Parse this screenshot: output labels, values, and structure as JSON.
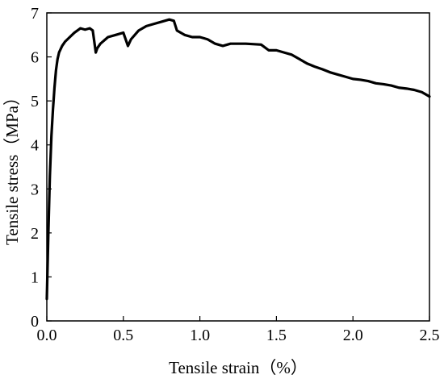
{
  "chart_data": {
    "type": "line",
    "xlabel": "Tensile strain（%）",
    "ylabel": "Tensile stress（MPa）",
    "xlim": [
      0,
      2.5
    ],
    "ylim": [
      0,
      7
    ],
    "xticks": [
      "0.0",
      "0.5",
      "1.0",
      "1.5",
      "2.0",
      "2.5"
    ],
    "yticks": [
      "0",
      "1",
      "2",
      "3",
      "4",
      "5",
      "6",
      "7"
    ],
    "grid": false,
    "legend": "none",
    "line_color": "#000000",
    "series": [
      {
        "x": [
          0.0,
          0.01,
          0.02,
          0.03,
          0.04,
          0.05,
          0.06,
          0.07,
          0.08,
          0.1,
          0.12,
          0.15,
          0.18,
          0.2,
          0.22,
          0.25,
          0.28,
          0.3,
          0.31,
          0.32,
          0.33,
          0.35,
          0.4,
          0.45,
          0.5,
          0.53,
          0.55,
          0.6,
          0.65,
          0.7,
          0.75,
          0.8,
          0.83,
          0.85,
          0.9,
          0.95,
          1.0,
          1.05,
          1.1,
          1.15,
          1.2,
          1.3,
          1.4,
          1.45,
          1.5,
          1.55,
          1.6,
          1.65,
          1.7,
          1.75,
          1.8,
          1.85,
          1.9,
          1.95,
          2.0,
          2.05,
          2.1,
          2.15,
          2.2,
          2.25,
          2.3,
          2.35,
          2.4,
          2.45,
          2.5
        ],
        "y": [
          0.5,
          2.0,
          3.3,
          4.2,
          4.8,
          5.3,
          5.7,
          5.95,
          6.1,
          6.25,
          6.35,
          6.45,
          6.55,
          6.6,
          6.65,
          6.62,
          6.65,
          6.6,
          6.35,
          6.1,
          6.2,
          6.3,
          6.45,
          6.5,
          6.55,
          6.25,
          6.4,
          6.6,
          6.7,
          6.75,
          6.8,
          6.85,
          6.82,
          6.6,
          6.5,
          6.45,
          6.45,
          6.4,
          6.3,
          6.25,
          6.3,
          6.3,
          6.28,
          6.15,
          6.15,
          6.1,
          6.05,
          5.95,
          5.85,
          5.78,
          5.72,
          5.65,
          5.6,
          5.55,
          5.5,
          5.48,
          5.45,
          5.4,
          5.38,
          5.35,
          5.3,
          5.28,
          5.25,
          5.2,
          5.1
        ]
      }
    ]
  }
}
